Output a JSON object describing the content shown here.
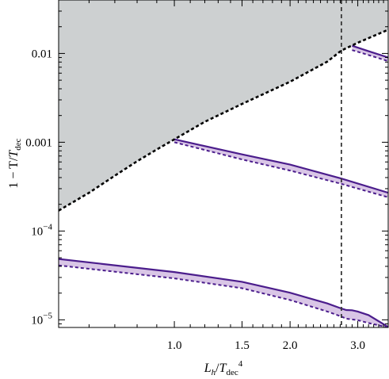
{
  "chart_data": {
    "type": "line",
    "xscale": "log",
    "yscale": "log",
    "xlim": [
      0.5,
      3.6
    ],
    "ylim": [
      8.2e-06,
      0.04
    ],
    "xlabel": {
      "var": "L",
      "var_sub": "h",
      "denom": "T",
      "denom_sub": "dec",
      "power": "4"
    },
    "ylabel": {
      "prefix": "1 − T/",
      "var": "T",
      "var_sub": "dec"
    },
    "x_ticks": [
      {
        "value": 1.0,
        "label": "1.0"
      },
      {
        "value": 1.5,
        "label": "1.5"
      },
      {
        "value": 2.0,
        "label": "2.0"
      },
      {
        "value": 3.0,
        "label": "3.0"
      }
    ],
    "y_ticks": [
      {
        "value": 1e-05,
        "label": "10",
        "exp": "−5"
      },
      {
        "value": 0.0001,
        "label": "10",
        "exp": "−4"
      },
      {
        "value": 0.001,
        "label": "0.001",
        "exp": ""
      },
      {
        "value": 0.01,
        "label": "0.01",
        "exp": ""
      }
    ],
    "grid": false,
    "legend": "none",
    "vertical_line": {
      "x": 2.72
    },
    "boundary_curve": {
      "x": [
        0.5,
        0.6,
        0.7,
        0.8,
        0.9,
        1.0,
        1.2,
        1.5,
        2.0,
        2.5,
        2.72,
        3.0,
        3.6
      ],
      "y": [
        0.00017,
        0.00027,
        0.00042,
        0.00061,
        0.00083,
        0.00108,
        0.0017,
        0.0027,
        0.0048,
        0.0081,
        0.0108,
        0.0132,
        0.0185
      ]
    },
    "bands": [
      {
        "x": [
          0.5,
          1.0,
          1.5,
          2.0,
          2.5,
          2.72,
          2.8,
          2.9,
          3.0,
          3.2,
          3.6
        ],
        "upper": [
          4.85e-05,
          3.45e-05,
          2.68e-05,
          2.02e-05,
          1.53e-05,
          1.34e-05,
          1.29e-05,
          1.28e-05,
          1.24e-05,
          1.13e-05,
          8.3e-06
        ],
        "lower": [
          4.1e-05,
          2.93e-05,
          2.27e-05,
          1.67e-05,
          1.24e-05,
          1.09e-05,
          1.03e-05,
          1.01e-05,
          9.9e-06,
          9.2e-06,
          8.2e-06
        ]
      },
      {
        "x": [
          1.0,
          1.5,
          2.0,
          2.72,
          3.6
        ],
        "upper": [
          0.00108,
          0.00073,
          0.00056,
          0.00039,
          0.00027
        ],
        "lower": [
          0.001,
          0.00064,
          0.00048,
          0.00034,
          0.00024
        ]
      },
      {
        "x": [
          2.9,
          3.2,
          3.6
        ],
        "upper": [
          0.0122,
          0.0106,
          0.009
        ],
        "lower": [
          0.0109,
          0.0096,
          0.0082
        ]
      }
    ],
    "colors": {
      "excluded_fill": "#cdd0d1",
      "band_line": "#4b1d8c",
      "band_fill": "#d9c6e6",
      "boundary": "#000000",
      "vertical_line": "#3a3a3a"
    }
  }
}
